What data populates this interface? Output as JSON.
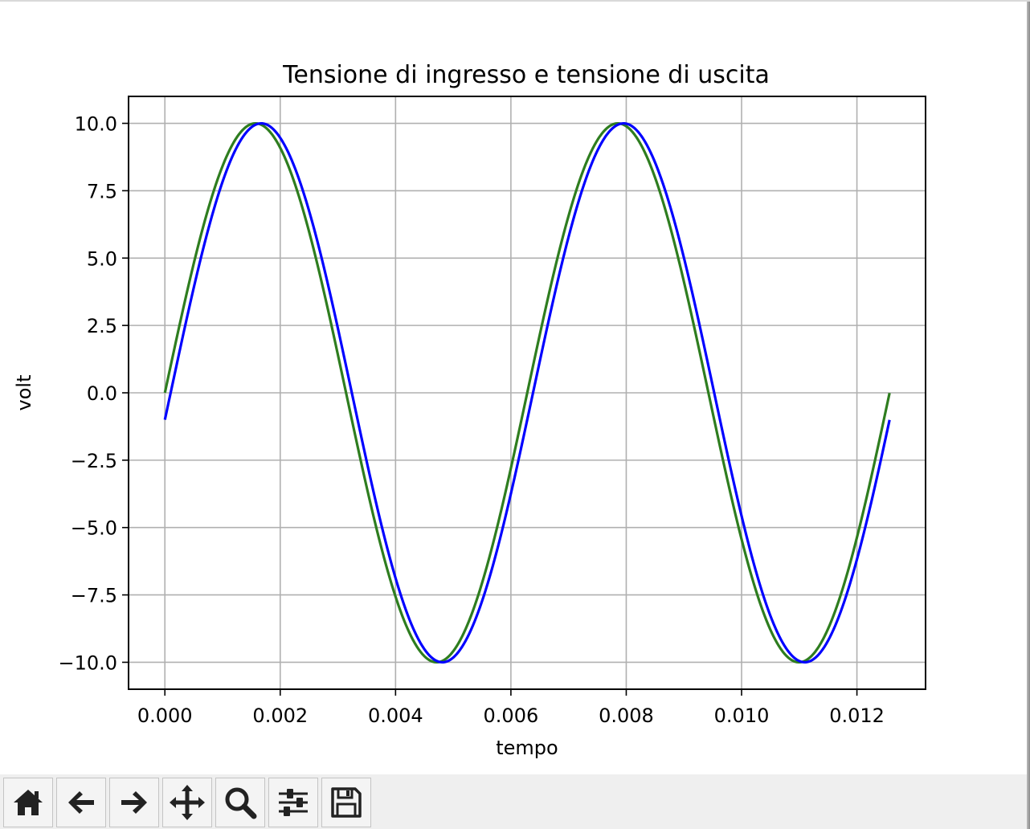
{
  "chart_data": {
    "type": "line",
    "title": "Tensione di ingresso e tensione di uscita",
    "xlabel": "tempo",
    "ylabel": "volt",
    "xlim": [
      -0.00063,
      0.01319
    ],
    "ylim": [
      -11.0,
      11.0
    ],
    "xticks": [
      0.0,
      0.002,
      0.004,
      0.006,
      0.008,
      0.01,
      0.012
    ],
    "xtick_labels": [
      "0.000",
      "0.002",
      "0.004",
      "0.006",
      "0.008",
      "0.010",
      "0.012"
    ],
    "yticks": [
      10.0,
      7.5,
      5.0,
      2.5,
      0.0,
      -2.5,
      -5.0,
      -7.5,
      -10.0
    ],
    "ytick_labels": [
      "10.0",
      "7.5",
      "5.0",
      "2.5",
      "0.0",
      "−2.5",
      "−5.0",
      "−7.5",
      "−10.0"
    ],
    "grid": true,
    "series": [
      {
        "color": "#2e7d1f",
        "amplitude": 10.0,
        "frequency_hz": 159.15,
        "phase_rad": 0.0,
        "x_range": [
          0.0,
          0.012566
        ]
      },
      {
        "color": "#0000ff",
        "amplitude": 10.0,
        "frequency_hz": 159.15,
        "phase_rad": -0.1,
        "x_range": [
          0.0,
          0.012566
        ]
      }
    ]
  },
  "toolbar": {
    "buttons": [
      {
        "name": "home-button",
        "icon": "home-icon"
      },
      {
        "name": "back-button",
        "icon": "arrow-left-icon"
      },
      {
        "name": "forward-button",
        "icon": "arrow-right-icon"
      },
      {
        "name": "pan-button",
        "icon": "move-icon"
      },
      {
        "name": "zoom-button",
        "icon": "magnifier-icon"
      },
      {
        "name": "configure-subplots-button",
        "icon": "sliders-icon"
      },
      {
        "name": "save-button",
        "icon": "floppy-disk-icon"
      }
    ]
  }
}
